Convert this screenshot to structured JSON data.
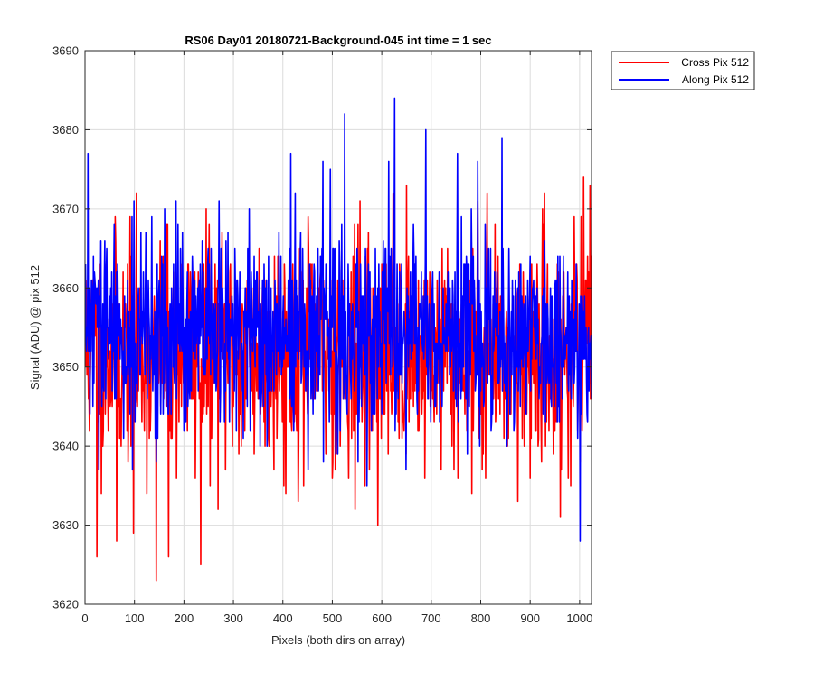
{
  "chart_data": {
    "type": "line",
    "title": "RS06 Day01 20180721-Background-045 int time = 1 sec",
    "xlabel": "Pixels (both dirs on array)",
    "ylabel": "Signal (ADU) @ pix 512",
    "xlim": [
      0,
      1024
    ],
    "ylim": [
      3620,
      3690
    ],
    "xticks": [
      0,
      100,
      200,
      300,
      400,
      500,
      600,
      700,
      800,
      900,
      1000
    ],
    "yticks": [
      3620,
      3630,
      3640,
      3650,
      3660,
      3670,
      3680,
      3690
    ],
    "grid": true,
    "legend_position": "outside-top-right",
    "series": [
      {
        "name": "Cross Pix 512",
        "color": "#ff0000",
        "noise": {
          "points": 1024,
          "mean": 3652,
          "sd": 7.2,
          "seed": 11
        },
        "spikes": [
          {
            "x": 23,
            "y": 3626
          },
          {
            "x": 63,
            "y": 3628
          },
          {
            "x": 97,
            "y": 3629
          },
          {
            "x": 143,
            "y": 3623
          },
          {
            "x": 168,
            "y": 3626
          },
          {
            "x": 233,
            "y": 3625
          },
          {
            "x": 545,
            "y": 3632
          },
          {
            "x": 605,
            "y": 3644
          },
          {
            "x": 680,
            "y": 3644
          },
          {
            "x": 812,
            "y": 3672
          },
          {
            "x": 960,
            "y": 3631
          },
          {
            "x": 1020,
            "y": 3673
          }
        ]
      },
      {
        "name": "Along Pix 512",
        "color": "#0000ff",
        "noise": {
          "points": 1024,
          "mean": 3654,
          "sd": 6.4,
          "seed": 29
        },
        "spikes": [
          {
            "x": 5,
            "y": 3677
          },
          {
            "x": 415,
            "y": 3677
          },
          {
            "x": 480,
            "y": 3676
          },
          {
            "x": 524,
            "y": 3682
          },
          {
            "x": 625,
            "y": 3684
          },
          {
            "x": 688,
            "y": 3680
          },
          {
            "x": 752,
            "y": 3677
          },
          {
            "x": 793,
            "y": 3676
          },
          {
            "x": 842,
            "y": 3679
          },
          {
            "x": 1000,
            "y": 3628
          }
        ]
      }
    ]
  }
}
